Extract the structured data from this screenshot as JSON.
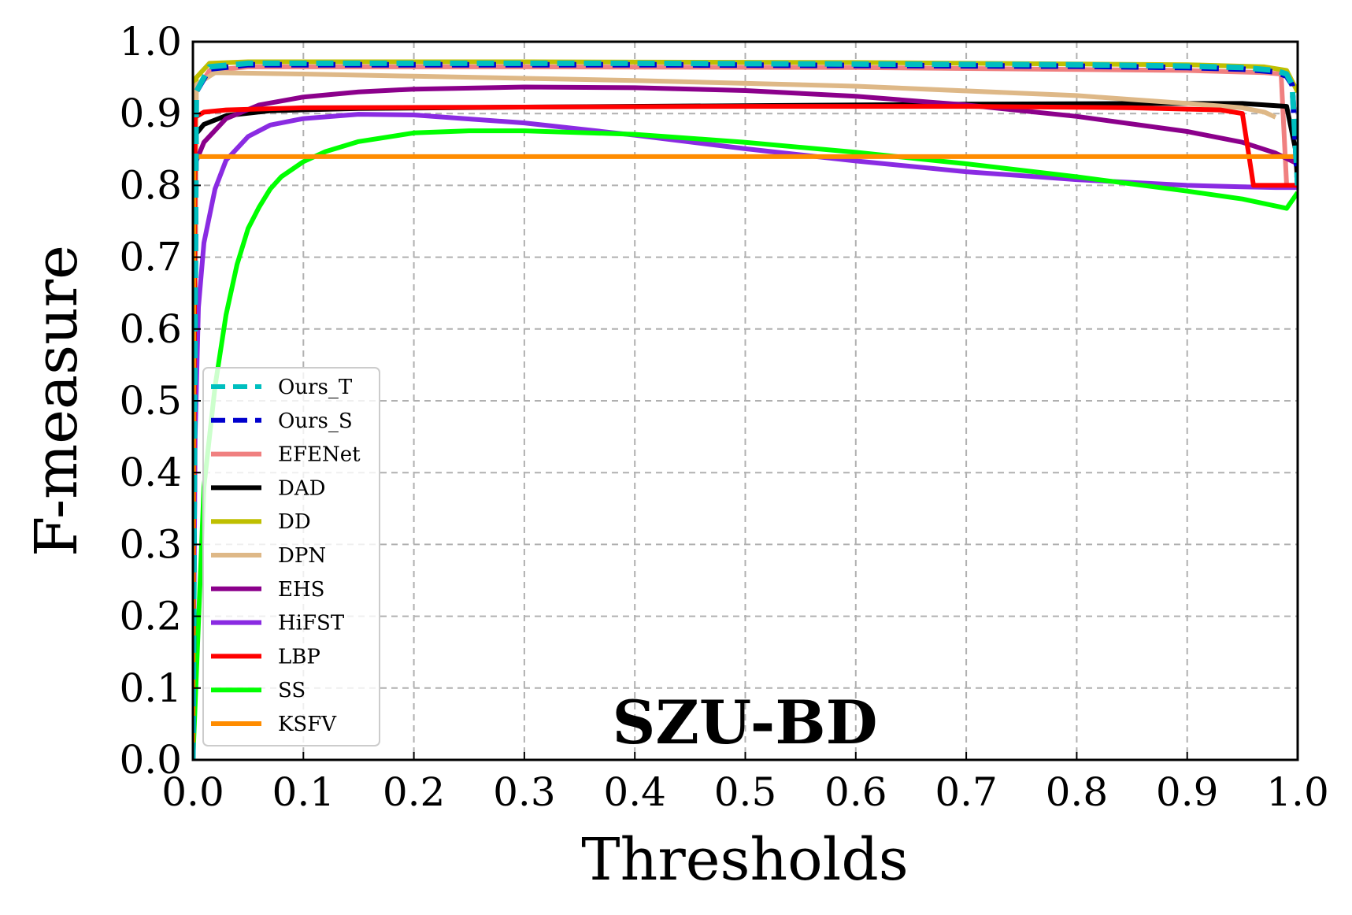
{
  "chart_data": {
    "type": "line",
    "title": "SZU-BD",
    "xlabel": "Thresholds",
    "ylabel": "F-measure",
    "xlim": [
      0,
      1
    ],
    "ylim": [
      0,
      1
    ],
    "xticks": [
      "0.0",
      "0.1",
      "0.2",
      "0.3",
      "0.4",
      "0.5",
      "0.6",
      "0.7",
      "0.8",
      "0.9",
      "1.0"
    ],
    "yticks": [
      "0.0",
      "0.1",
      "0.2",
      "0.3",
      "0.4",
      "0.5",
      "0.6",
      "0.7",
      "0.8",
      "0.9",
      "1.0"
    ],
    "grid": true,
    "legend_position": "lower-left",
    "series": [
      {
        "name": "Ours_T",
        "color": "#00bfbf",
        "dash": true,
        "x": [
          0.0,
          0.003,
          0.015,
          0.05,
          0.2,
          0.4,
          0.6,
          0.8,
          0.9,
          0.95,
          0.98,
          0.99,
          0.995,
          1.0
        ],
        "y": [
          0.0,
          0.93,
          0.965,
          0.97,
          0.97,
          0.97,
          0.969,
          0.968,
          0.966,
          0.964,
          0.96,
          0.955,
          0.94,
          0.8
        ]
      },
      {
        "name": "Ours_S",
        "color": "#0000cd",
        "dash": true,
        "x": [
          0.0,
          0.003,
          0.015,
          0.05,
          0.2,
          0.4,
          0.6,
          0.8,
          0.9,
          0.95,
          0.98,
          0.99,
          0.995,
          1.0
        ],
        "y": [
          0.0,
          0.93,
          0.962,
          0.968,
          0.968,
          0.968,
          0.967,
          0.966,
          0.964,
          0.962,
          0.958,
          0.952,
          0.94,
          0.8
        ]
      },
      {
        "name": "EFENet",
        "color": "#f08080",
        "dash": false,
        "x": [
          0.0,
          0.003,
          0.015,
          0.05,
          0.3,
          0.6,
          0.9,
          0.97,
          0.985,
          0.99,
          1.0
        ],
        "y": [
          0.0,
          0.93,
          0.96,
          0.965,
          0.965,
          0.964,
          0.96,
          0.957,
          0.955,
          0.8,
          0.8
        ]
      },
      {
        "name": "DAD",
        "color": "#000000",
        "dash": false,
        "x": [
          0.0,
          0.002,
          0.01,
          0.03,
          0.07,
          0.15,
          0.3,
          0.5,
          0.7,
          0.85,
          0.95,
          0.99,
          0.998,
          1.0
        ],
        "y": [
          0.0,
          0.87,
          0.885,
          0.897,
          0.904,
          0.907,
          0.909,
          0.911,
          0.913,
          0.914,
          0.914,
          0.91,
          0.85,
          0.8
        ]
      },
      {
        "name": "DD",
        "color": "#bfbf00",
        "dash": false,
        "x": [
          0.0,
          0.003,
          0.015,
          0.05,
          0.3,
          0.6,
          0.9,
          0.97,
          0.99,
          1.0
        ],
        "y": [
          0.0,
          0.95,
          0.97,
          0.972,
          0.972,
          0.971,
          0.968,
          0.965,
          0.96,
          0.93
        ]
      },
      {
        "name": "DPN",
        "color": "#deb887",
        "dash": false,
        "x": [
          0.0,
          0.003,
          0.02,
          0.1,
          0.2,
          0.4,
          0.6,
          0.8,
          0.9,
          0.95,
          0.97,
          0.98
        ],
        "y": [
          0.0,
          0.94,
          0.957,
          0.955,
          0.952,
          0.946,
          0.938,
          0.925,
          0.914,
          0.908,
          0.902,
          0.895
        ]
      },
      {
        "name": "EHS",
        "color": "#8b008b",
        "dash": false,
        "x": [
          0.0,
          0.002,
          0.01,
          0.03,
          0.06,
          0.1,
          0.15,
          0.2,
          0.3,
          0.4,
          0.5,
          0.6,
          0.7,
          0.8,
          0.9,
          0.95,
          0.98,
          1.0
        ],
        "y": [
          0.0,
          0.83,
          0.86,
          0.893,
          0.912,
          0.923,
          0.93,
          0.934,
          0.937,
          0.936,
          0.932,
          0.924,
          0.912,
          0.896,
          0.875,
          0.86,
          0.845,
          0.83
        ]
      },
      {
        "name": "HiFST",
        "color": "#8a2be2",
        "dash": false,
        "x": [
          0.0,
          0.002,
          0.005,
          0.01,
          0.02,
          0.03,
          0.05,
          0.07,
          0.1,
          0.15,
          0.2,
          0.3,
          0.4,
          0.5,
          0.6,
          0.7,
          0.8,
          0.9,
          0.95,
          0.98,
          1.0
        ],
        "y": [
          0.0,
          0.45,
          0.63,
          0.72,
          0.795,
          0.835,
          0.868,
          0.884,
          0.893,
          0.899,
          0.898,
          0.887,
          0.87,
          0.851,
          0.834,
          0.819,
          0.808,
          0.8,
          0.798,
          0.797,
          0.797
        ]
      },
      {
        "name": "LBP",
        "color": "#ff0000",
        "dash": false,
        "x": [
          0.0,
          0.002,
          0.01,
          0.03,
          0.1,
          0.3,
          0.5,
          0.7,
          0.85,
          0.93,
          0.95,
          0.955,
          0.96,
          1.0
        ],
        "y": [
          0.0,
          0.895,
          0.902,
          0.905,
          0.908,
          0.909,
          0.91,
          0.91,
          0.908,
          0.905,
          0.9,
          0.85,
          0.8,
          0.8
        ]
      },
      {
        "name": "SS",
        "color": "#00ff00",
        "dash": false,
        "x": [
          0.0,
          0.01,
          0.02,
          0.03,
          0.04,
          0.05,
          0.06,
          0.07,
          0.08,
          0.1,
          0.12,
          0.15,
          0.2,
          0.25,
          0.3,
          0.4,
          0.5,
          0.6,
          0.7,
          0.8,
          0.9,
          0.95,
          0.99,
          1.0
        ],
        "y": [
          0.0,
          0.38,
          0.52,
          0.62,
          0.69,
          0.74,
          0.77,
          0.795,
          0.812,
          0.833,
          0.847,
          0.861,
          0.873,
          0.876,
          0.876,
          0.871,
          0.86,
          0.846,
          0.83,
          0.812,
          0.792,
          0.781,
          0.768,
          0.79
        ]
      },
      {
        "name": "KSFV",
        "color": "#ff8c00",
        "dash": false,
        "x": [
          0.0,
          0.001,
          1.0
        ],
        "y": [
          0.0,
          0.84,
          0.84
        ]
      }
    ]
  }
}
